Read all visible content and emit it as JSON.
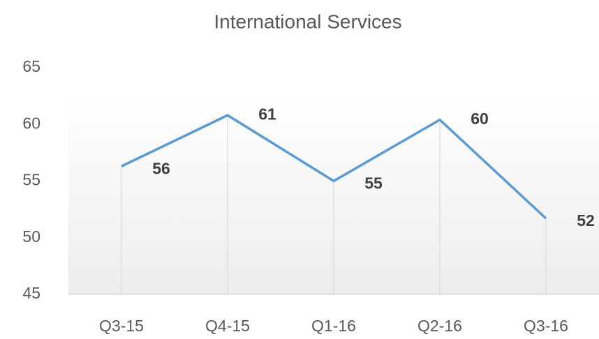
{
  "chart_data": {
    "type": "line",
    "title": "International Services",
    "categories": [
      "Q3-15",
      "Q4-15",
      "Q1-16",
      "Q2-16",
      "Q3-16"
    ],
    "series": [
      {
        "name": "International Services",
        "color": "#5b9bd5",
        "values": [
          56.3,
          60.8,
          55.0,
          60.4,
          51.7
        ],
        "value_labels": [
          "56",
          "61",
          "55",
          "60",
          "52"
        ]
      }
    ],
    "ylim": [
      45,
      65
    ],
    "yticks": [
      45,
      50,
      55,
      60,
      65
    ],
    "grid": false
  }
}
